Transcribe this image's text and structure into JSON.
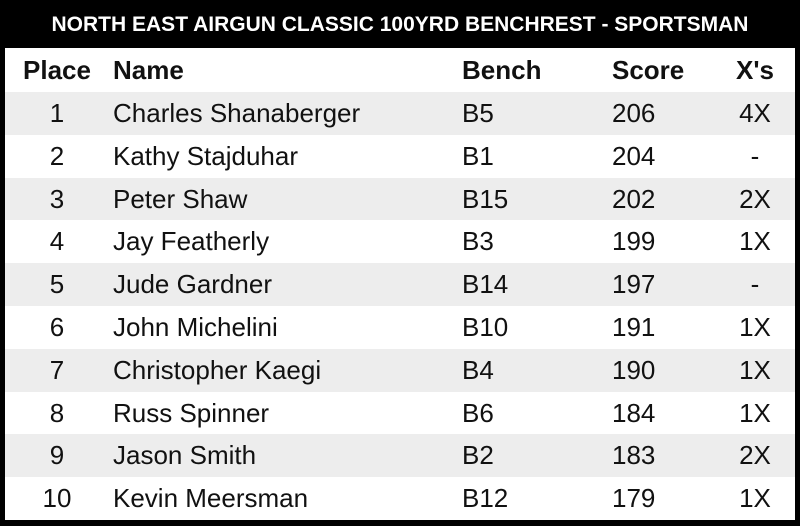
{
  "title": "NORTH EAST AIRGUN CLASSIC 100YRD BENCHREST - SPORTSMAN",
  "table": {
    "header": [
      "Place",
      "Name",
      "Bench",
      "Score",
      "X's"
    ],
    "rows": [
      [
        1,
        "Charles Shanaberger",
        "B5",
        206,
        "4X"
      ],
      [
        2,
        "Kathy Stajduhar",
        "B1",
        204,
        "-"
      ],
      [
        3,
        "Peter Shaw",
        "B15",
        202,
        "2X"
      ],
      [
        4,
        "Jay Featherly",
        "B3",
        199,
        "1X"
      ],
      [
        5,
        "Jude Gardner",
        "B14",
        197,
        "-"
      ],
      [
        6,
        "John Michelini",
        "B10",
        191,
        "1X"
      ],
      [
        7,
        "Christopher Kaegi",
        "B4",
        190,
        "1X"
      ],
      [
        8,
        "Russ Spinner",
        "B6",
        184,
        "1X"
      ],
      [
        9,
        "Jason Smith",
        "B2",
        183,
        "2X"
      ],
      [
        10,
        "Kevin Meersman",
        "B12",
        179,
        "1X"
      ]
    ]
  }
}
